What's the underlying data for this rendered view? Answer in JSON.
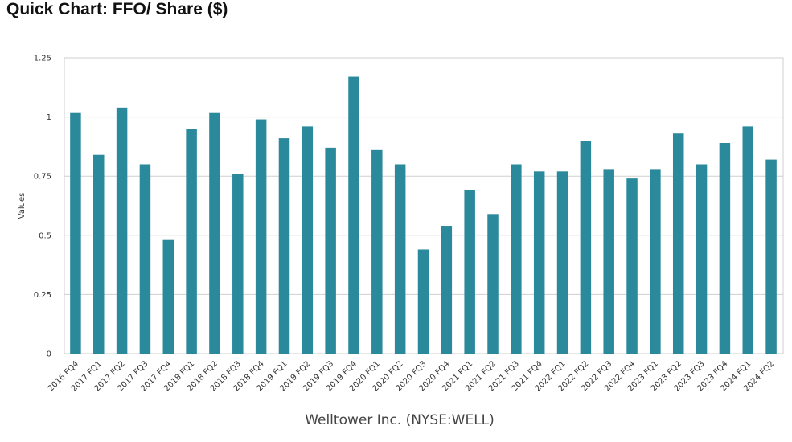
{
  "header": {
    "title": "Quick Chart: FFO/ Share ($)"
  },
  "chart_data": {
    "type": "bar",
    "title": "Quick Chart: FFO/ Share ($)",
    "xlabel": "Welltower Inc. (NYSE:WELL)",
    "ylabel": "Values",
    "ylim": [
      0,
      1.25
    ],
    "yticks": [
      0,
      0.25,
      0.5,
      0.75,
      1,
      1.25
    ],
    "ytick_labels": [
      "0",
      "0.25",
      "0.5",
      "0.75",
      "1",
      "1.25"
    ],
    "grid": true,
    "legend": "none",
    "bar_color": "#2a8a9c",
    "categories": [
      "2016 FQ4",
      "2017 FQ1",
      "2017 FQ2",
      "2017 FQ3",
      "2017 FQ4",
      "2018 FQ1",
      "2018 FQ2",
      "2018 FQ3",
      "2018 FQ4",
      "2019 FQ1",
      "2019 FQ2",
      "2019 FQ3",
      "2019 FQ4",
      "2020 FQ1",
      "2020 FQ2",
      "2020 FQ3",
      "2020 FQ4",
      "2021 FQ1",
      "2021 FQ2",
      "2021 FQ3",
      "2021 FQ4",
      "2022 FQ1",
      "2022 FQ2",
      "2022 FQ3",
      "2022 FQ4",
      "2023 FQ1",
      "2023 FQ2",
      "2023 FQ3",
      "2023 FQ4",
      "2024 FQ1",
      "2024 FQ2"
    ],
    "values": [
      1.02,
      0.84,
      1.04,
      0.8,
      0.48,
      0.95,
      1.02,
      0.76,
      0.99,
      0.91,
      0.96,
      0.87,
      1.17,
      0.86,
      0.8,
      0.44,
      0.54,
      0.69,
      0.59,
      0.8,
      0.77,
      0.77,
      0.9,
      0.78,
      0.74,
      0.78,
      0.93,
      0.8,
      0.89,
      0.96,
      0.82
    ]
  }
}
